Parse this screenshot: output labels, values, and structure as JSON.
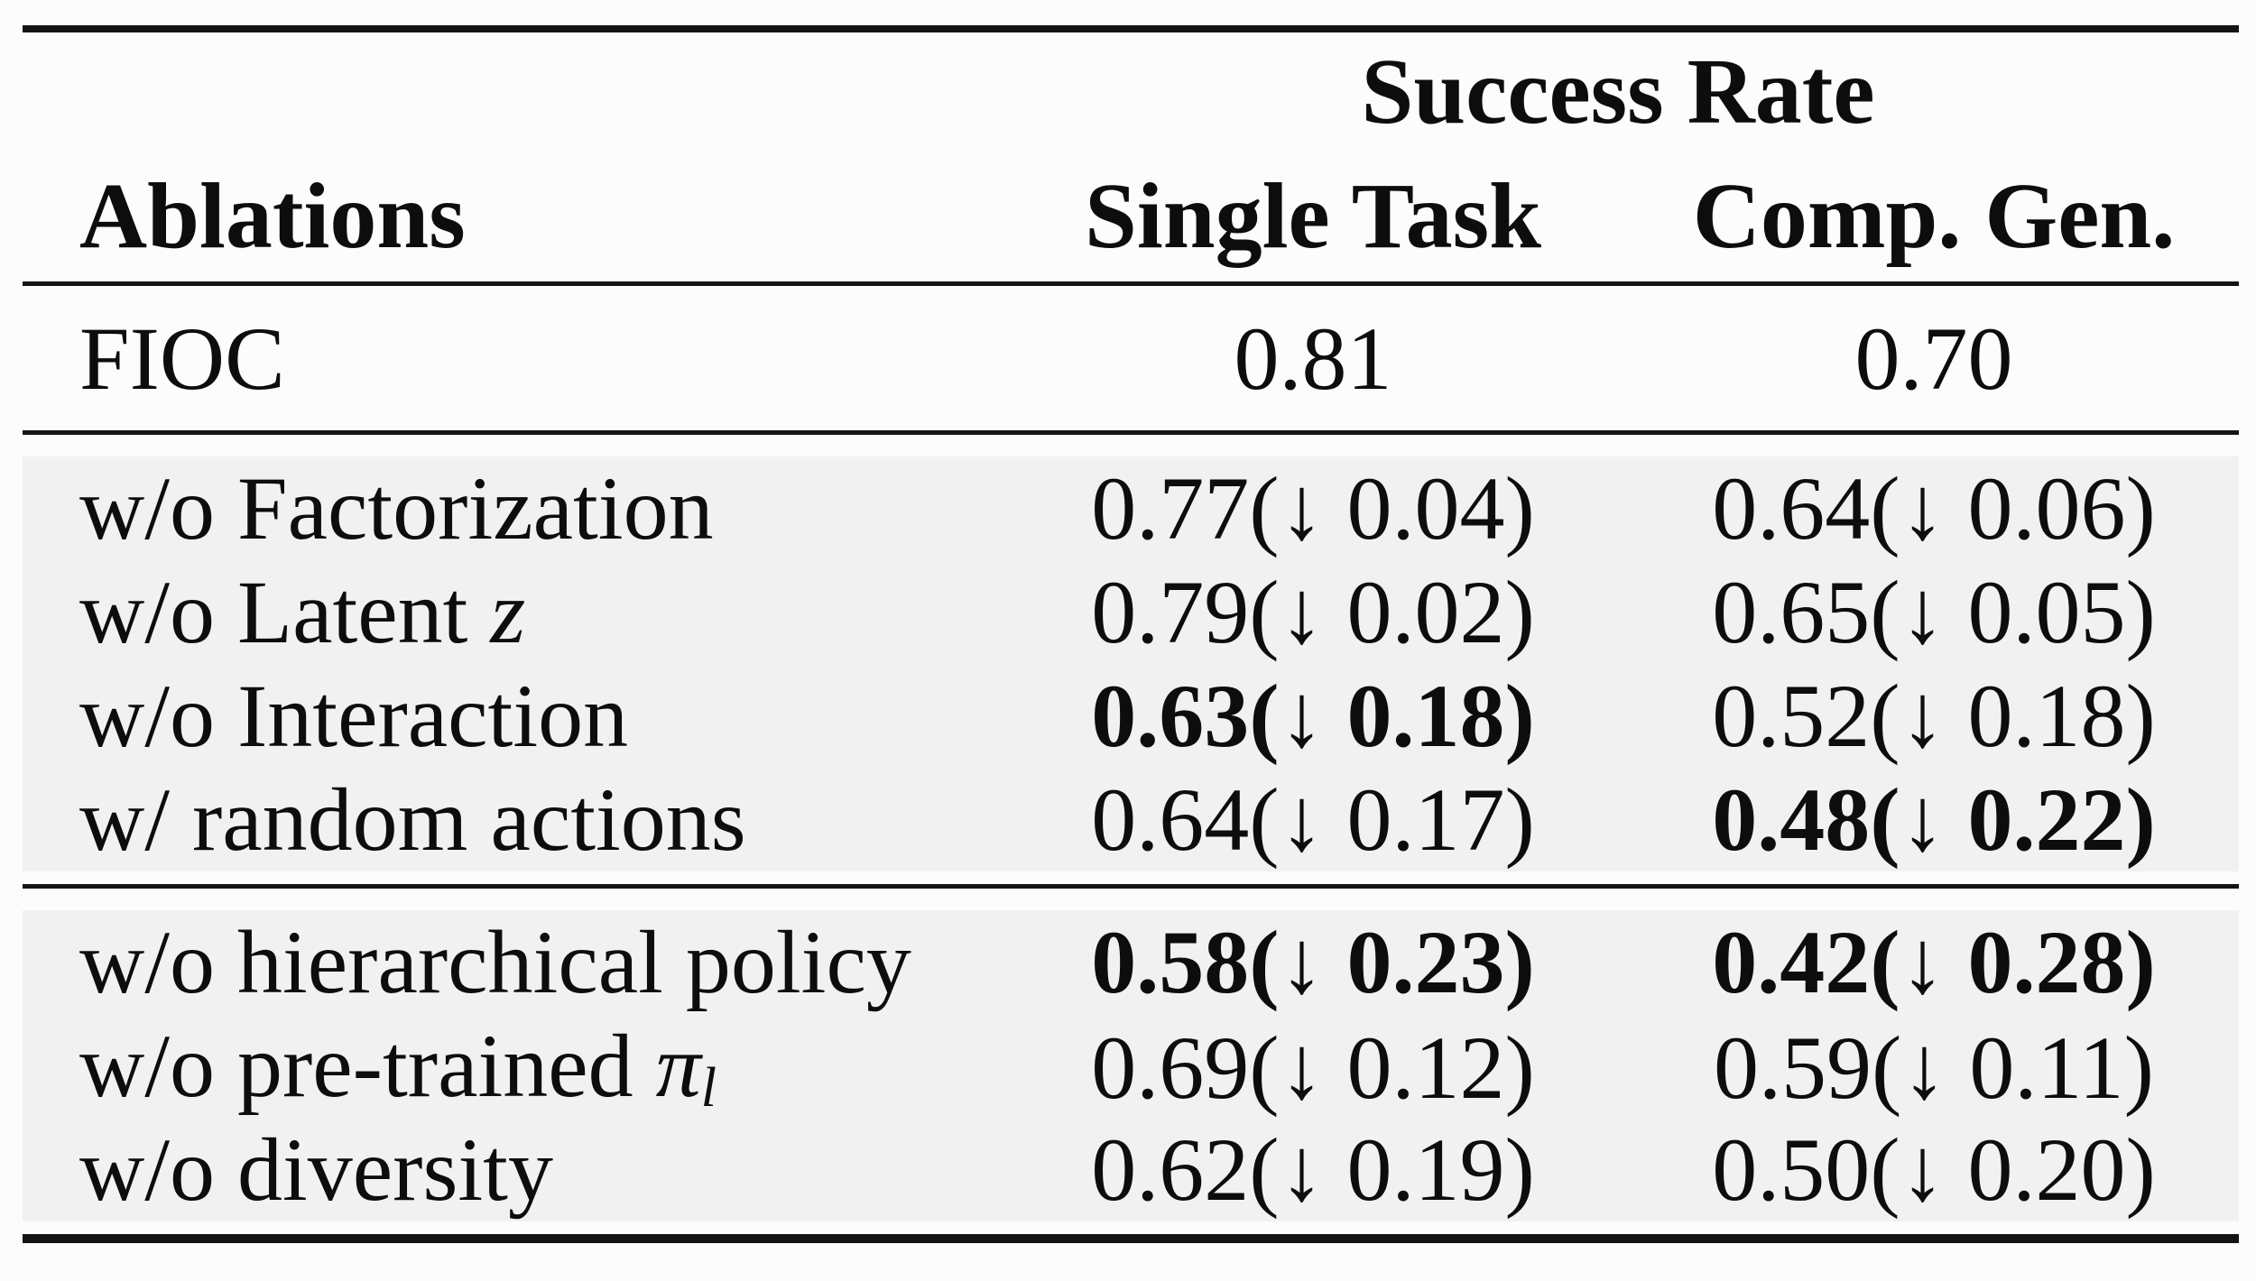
{
  "page": {
    "background": "#fcfcfc"
  },
  "colors": {
    "text": "#0d0d0d",
    "rule": "#141414",
    "shaded_row_bg": "#f1f1f1"
  },
  "table": {
    "arrow_icon": "↓",
    "header": {
      "row_header_label": "Ablations",
      "group_header_label": "Success Rate",
      "columns": [
        "Single Task",
        "Comp. Gen."
      ]
    },
    "groups": [
      {
        "id": "baseline",
        "shaded": false,
        "rows": [
          {
            "label_segments": [
              {
                "text": "FIOC",
                "style": "normal"
              }
            ],
            "cells": [
              {
                "value": "0.81",
                "delta": null,
                "bold": false
              },
              {
                "value": "0.70",
                "delta": null,
                "bold": false
              }
            ]
          }
        ]
      },
      {
        "id": "component-ablations",
        "shaded": true,
        "rows": [
          {
            "label_segments": [
              {
                "text": "w/o Factorization",
                "style": "normal"
              }
            ],
            "cells": [
              {
                "value": "0.77",
                "delta": "0.04",
                "bold": false
              },
              {
                "value": "0.64",
                "delta": "0.06",
                "bold": false
              }
            ]
          },
          {
            "label_segments": [
              {
                "text": "w/o Latent ",
                "style": "normal"
              },
              {
                "text": "z",
                "style": "math-italic"
              }
            ],
            "cells": [
              {
                "value": "0.79",
                "delta": "0.02",
                "bold": false
              },
              {
                "value": "0.65",
                "delta": "0.05",
                "bold": false
              }
            ]
          },
          {
            "label_segments": [
              {
                "text": "w/o Interaction",
                "style": "normal"
              }
            ],
            "cells": [
              {
                "value": "0.63",
                "delta": "0.18",
                "bold": true
              },
              {
                "value": "0.52",
                "delta": "0.18",
                "bold": false
              }
            ]
          },
          {
            "label_segments": [
              {
                "text": "w/ random actions",
                "style": "normal"
              }
            ],
            "cells": [
              {
                "value": "0.64",
                "delta": "0.17",
                "bold": false
              },
              {
                "value": "0.48",
                "delta": "0.22",
                "bold": true
              }
            ]
          }
        ]
      },
      {
        "id": "policy-ablations",
        "shaded": true,
        "rows": [
          {
            "label_segments": [
              {
                "text": "w/o hierarchical policy",
                "style": "normal"
              }
            ],
            "cells": [
              {
                "value": "0.58",
                "delta": "0.23",
                "bold": true
              },
              {
                "value": "0.42",
                "delta": "0.28",
                "bold": true
              }
            ]
          },
          {
            "label_segments": [
              {
                "text": "w/o pre-trained ",
                "style": "normal"
              },
              {
                "text": "π",
                "style": "math-italic"
              },
              {
                "text": "l",
                "style": "math-sub"
              }
            ],
            "cells": [
              {
                "value": "0.69",
                "delta": "0.12",
                "bold": false
              },
              {
                "value": "0.59",
                "delta": "0.11",
                "bold": false
              }
            ]
          },
          {
            "label_segments": [
              {
                "text": "w/o diversity",
                "style": "normal"
              }
            ],
            "cells": [
              {
                "value": "0.62",
                "delta": "0.19",
                "bold": false
              },
              {
                "value": "0.50",
                "delta": "0.20",
                "bold": false
              }
            ]
          }
        ]
      }
    ]
  }
}
